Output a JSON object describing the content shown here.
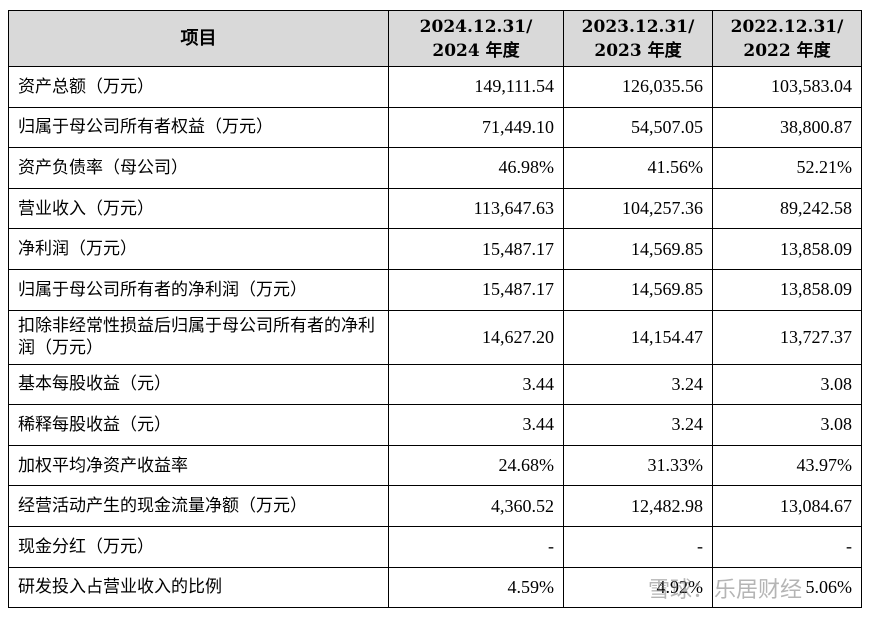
{
  "table": {
    "headers": [
      "项目",
      "2024.12.31/\n2024 年度",
      "2023.12.31/\n2023 年度",
      "2022.12.31/\n2022 年度"
    ],
    "header_lines": [
      [
        "项目"
      ],
      [
        "2024.12.31/",
        "2024 年度"
      ],
      [
        "2023.12.31/",
        "2023 年度"
      ],
      [
        "2022.12.31/",
        "2022 年度"
      ]
    ],
    "rows": [
      {
        "label": "资产总额（万元）",
        "values": [
          "149,111.54",
          "126,035.56",
          "103,583.04"
        ]
      },
      {
        "label": "归属于母公司所有者权益（万元）",
        "values": [
          "71,449.10",
          "54,507.05",
          "38,800.87"
        ]
      },
      {
        "label": "资产负债率（母公司）",
        "values": [
          "46.98%",
          "41.56%",
          "52.21%"
        ]
      },
      {
        "label": "营业收入（万元）",
        "values": [
          "113,647.63",
          "104,257.36",
          "89,242.58"
        ]
      },
      {
        "label": "净利润（万元）",
        "values": [
          "15,487.17",
          "14,569.85",
          "13,858.09"
        ]
      },
      {
        "label": "归属于母公司所有者的净利润（万元）",
        "values": [
          "15,487.17",
          "14,569.85",
          "13,858.09"
        ]
      },
      {
        "label": "扣除非经常性损益后归属于母公司所有者的净利润（万元）",
        "values": [
          "14,627.20",
          "14,154.47",
          "13,727.37"
        ]
      },
      {
        "label": "基本每股收益（元）",
        "values": [
          "3.44",
          "3.24",
          "3.08"
        ]
      },
      {
        "label": "稀释每股收益（元）",
        "values": [
          "3.44",
          "3.24",
          "3.08"
        ]
      },
      {
        "label": "加权平均净资产收益率",
        "values": [
          "24.68%",
          "31.33%",
          "43.97%"
        ]
      },
      {
        "label": "经营活动产生的现金流量净额（万元）",
        "values": [
          "4,360.52",
          "12,482.98",
          "13,084.67"
        ]
      },
      {
        "label": "现金分红（万元）",
        "values": [
          "-",
          "-",
          "-"
        ]
      },
      {
        "label": "研发投入占营业收入的比例",
        "values": [
          "4.59%",
          "4.92%",
          "5.06%"
        ]
      }
    ]
  },
  "watermark": "雪球：乐居财经"
}
